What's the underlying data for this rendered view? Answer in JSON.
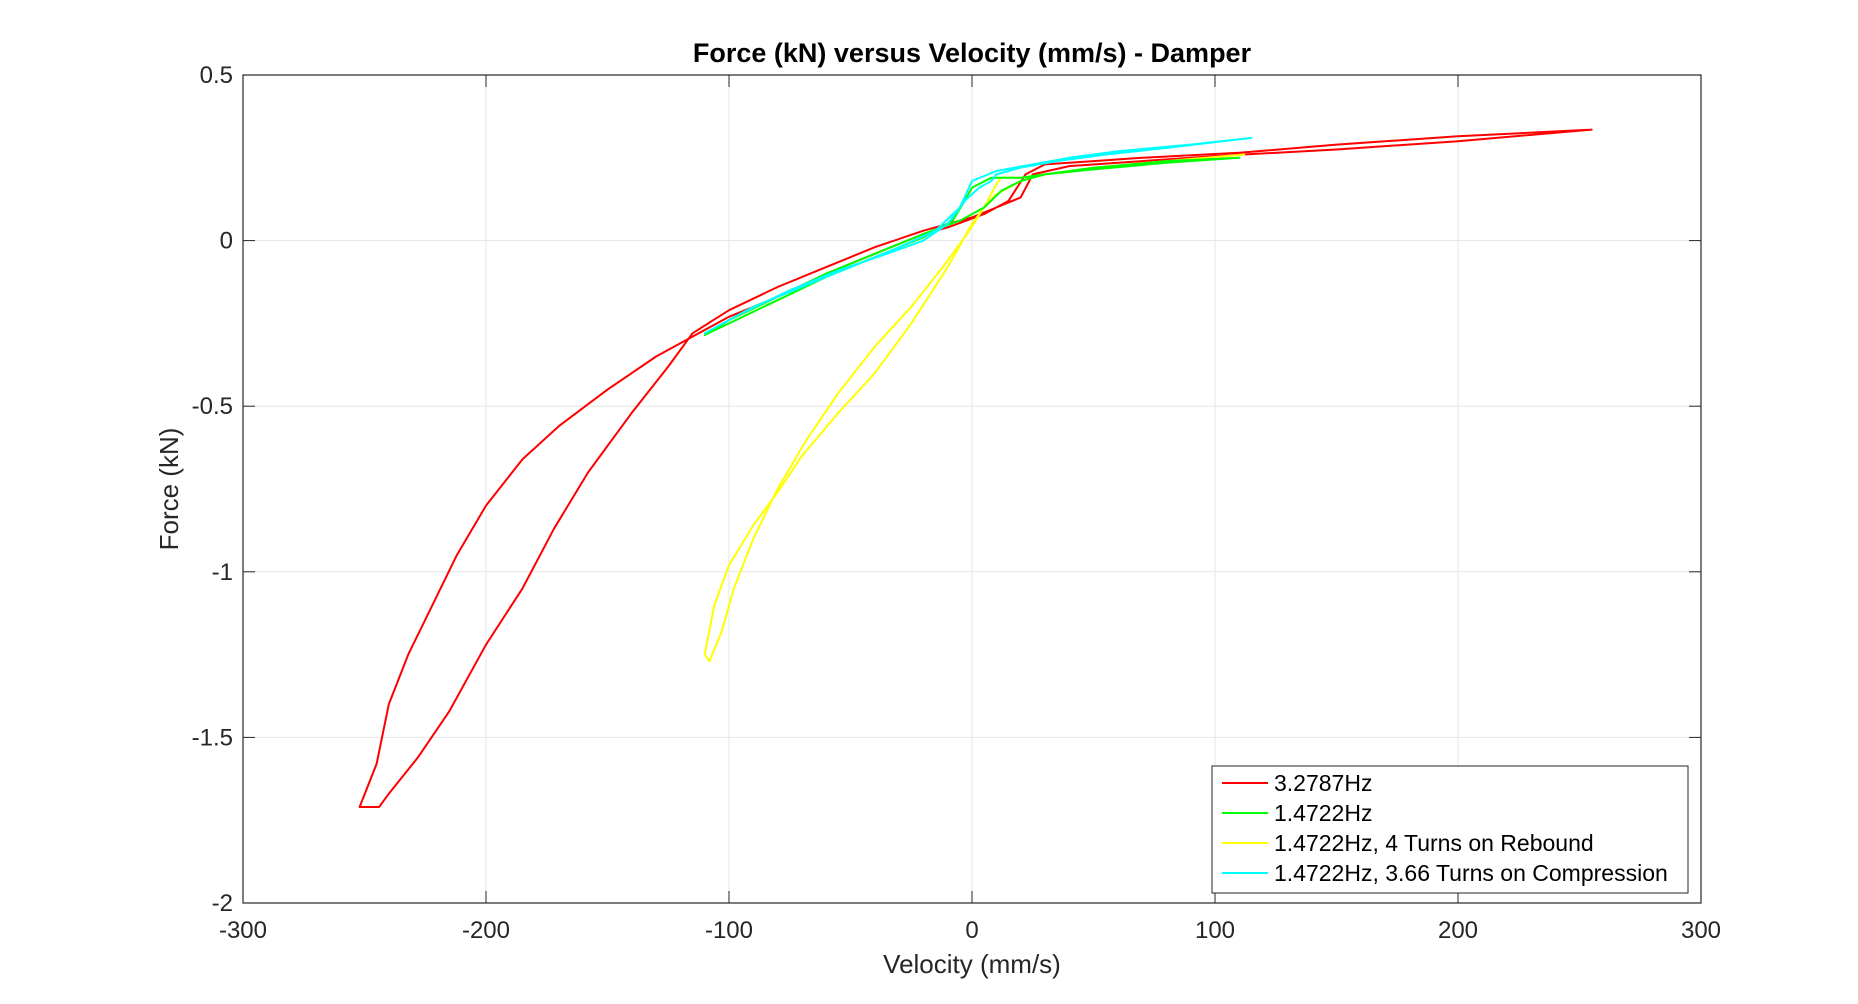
{
  "chart_data": {
    "type": "line",
    "title": "Force (kN) versus Velocity (mm/s) - Damper",
    "xlabel": "Velocity (mm/s)",
    "ylabel": "Force (kN)",
    "xlim": [
      -300,
      300
    ],
    "ylim": [
      -2,
      0.5
    ],
    "xticks": [
      -300,
      -200,
      -100,
      0,
      100,
      200,
      300
    ],
    "yticks": [
      0.5,
      0,
      -0.5,
      -1,
      -1.5,
      -2
    ],
    "xtick_labels": [
      "-300",
      "-200",
      "-100",
      "0",
      "100",
      "200",
      "300"
    ],
    "ytick_labels": [
      "0.5",
      "0",
      "-0.5",
      "-1",
      "-1.5",
      "-2"
    ],
    "grid": true,
    "legend_position": "bottom-right",
    "series": [
      {
        "name": "3.2787Hz",
        "color": "#ff0000",
        "x": [
          255,
          200,
          150,
          110,
          70,
          50,
          30,
          22,
          15,
          5,
          -10,
          -20,
          -40,
          -60,
          -80,
          -100,
          -115,
          -130,
          -150,
          -170,
          -185,
          -200,
          -212,
          -222,
          -232,
          -240,
          -245,
          -252,
          -244,
          -240,
          -228,
          -215,
          -200,
          -185,
          -172,
          -158,
          -140,
          -125,
          -115,
          -100,
          -80,
          -60,
          -40,
          -20,
          0,
          10,
          20,
          25,
          40,
          70,
          100,
          150,
          200,
          255
        ],
        "y": [
          0.335,
          0.315,
          0.29,
          0.265,
          0.25,
          0.24,
          0.23,
          0.2,
          0.12,
          0.08,
          0.04,
          0.02,
          -0.04,
          -0.1,
          -0.17,
          -0.23,
          -0.29,
          -0.35,
          -0.45,
          -0.56,
          -0.66,
          -0.8,
          -0.95,
          -1.1,
          -1.25,
          -1.4,
          -1.58,
          -1.71,
          -1.71,
          -1.67,
          -1.56,
          -1.42,
          -1.22,
          -1.05,
          -0.87,
          -0.7,
          -0.52,
          -0.38,
          -0.28,
          -0.21,
          -0.14,
          -0.08,
          -0.02,
          0.03,
          0.07,
          0.1,
          0.13,
          0.2,
          0.225,
          0.24,
          0.255,
          0.275,
          0.3,
          0.335
        ]
      },
      {
        "name": "1.4722Hz",
        "color": "#00ff00",
        "x": [
          110,
          80,
          50,
          30,
          20,
          12,
          5,
          -5,
          -20,
          -40,
          -60,
          -80,
          -100,
          -110,
          -100,
          -80,
          -60,
          -40,
          -20,
          -8,
          -3,
          0,
          8,
          12,
          20,
          30,
          50,
          80,
          110
        ],
        "y": [
          0.25,
          0.235,
          0.215,
          0.2,
          0.18,
          0.15,
          0.1,
          0.06,
          0.02,
          -0.04,
          -0.1,
          -0.17,
          -0.24,
          -0.285,
          -0.25,
          -0.18,
          -0.11,
          -0.05,
          0.01,
          0.06,
          0.12,
          0.16,
          0.19,
          0.19,
          0.19,
          0.2,
          0.22,
          0.24,
          0.25
        ]
      },
      {
        "name": "1.4722Hz, 4 Turns on Rebound",
        "color": "#ffff00",
        "x": [
          112,
          80,
          50,
          30,
          20,
          10,
          5,
          0,
          -10,
          -25,
          -40,
          -55,
          -70,
          -80,
          -90,
          -100,
          -106,
          -110,
          -108,
          -103,
          -98,
          -90,
          -80,
          -68,
          -55,
          -40,
          -25,
          -12,
          -2,
          5,
          10,
          12,
          20,
          30,
          50,
          80,
          112
        ],
        "y": [
          0.26,
          0.24,
          0.22,
          0.2,
          0.18,
          0.14,
          0.1,
          0.05,
          -0.08,
          -0.25,
          -0.4,
          -0.52,
          -0.65,
          -0.76,
          -0.86,
          -0.98,
          -1.1,
          -1.25,
          -1.27,
          -1.18,
          -1.05,
          -0.9,
          -0.75,
          -0.6,
          -0.46,
          -0.32,
          -0.2,
          -0.08,
          0.02,
          0.1,
          0.17,
          0.19,
          0.19,
          0.2,
          0.22,
          0.24,
          0.26
        ]
      },
      {
        "name": "1.4722Hz, 3.66 Turns on Compression",
        "color": "#00ffff",
        "x": [
          115,
          90,
          60,
          40,
          25,
          10,
          0,
          -5,
          -15,
          -30,
          -50,
          -70,
          -90,
          -110,
          -95,
          -75,
          -55,
          -35,
          -20,
          -10,
          -3,
          3,
          8,
          10,
          20,
          35,
          55,
          80,
          115
        ],
        "y": [
          0.31,
          0.29,
          0.27,
          0.25,
          0.23,
          0.21,
          0.18,
          0.1,
          0.03,
          -0.02,
          -0.08,
          -0.14,
          -0.2,
          -0.28,
          -0.22,
          -0.15,
          -0.09,
          -0.04,
          0.0,
          0.05,
          0.12,
          0.16,
          0.18,
          0.2,
          0.22,
          0.24,
          0.26,
          0.28,
          0.31
        ]
      }
    ]
  }
}
